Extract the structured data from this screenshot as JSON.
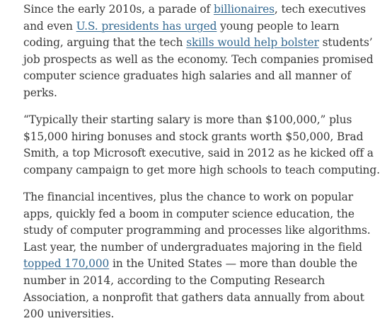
{
  "article": {
    "paragraph_1": {
      "t1": "Since the early 2010s, a parade of ",
      "link_billionaires": "billionaires",
      "t2": ", tech executives and even ",
      "link_presidents": "U.S. presidents has urged",
      "t3": " young people to learn coding, arguing that the tech ",
      "link_skills": "skills would help bolster",
      "t4": " students’ job prospects as well as the economy. Tech companies promised computer science graduates high salaries and all manner of perks."
    },
    "paragraph_2": {
      "text": "“Typically their starting salary is more than $100,000,” plus $15,000 hiring bonuses and stock grants worth $50,000, Brad Smith, a top Microsoft executive, said in 2012 as he kicked off a company campaign to get more high schools to teach computing."
    },
    "paragraph_3": {
      "t1": "The financial incentives, plus the chance to work on popular apps, quickly fed a boom in computer science education, the study of computer programming and processes like algorithms. Last year, the number of undergraduates majoring in the field ",
      "link_topped": "topped 170,000",
      "t2": " in the United States — more than double the number in 2014, according to the Computing Research Association, a nonprofit that gathers data annually from about 200 universities."
    }
  }
}
